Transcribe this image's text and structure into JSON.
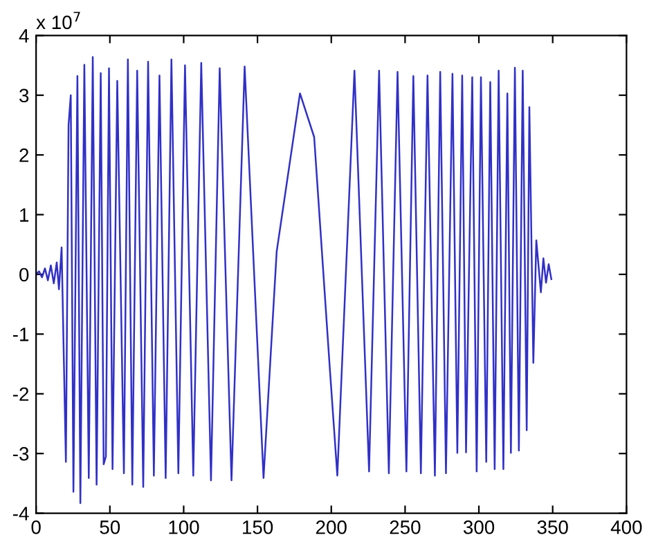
{
  "chart_data": {
    "type": "line",
    "annotations": [
      "x 10$^{7}$"
    ],
    "xlim": [
      0,
      400
    ],
    "xticks": [
      0,
      50,
      100,
      150,
      200,
      250,
      300,
      350,
      400
    ],
    "ylim": [
      -4,
      4
    ],
    "yticks": [
      -4,
      -3,
      -2,
      -1,
      0,
      1,
      2,
      3,
      4
    ],
    "grid": false,
    "marker": "none",
    "line_style": "solid",
    "series": [
      {
        "color": "#3030c8",
        "x": [
          0,
          2,
          4,
          6,
          8,
          10,
          12,
          14,
          15.5,
          17.3,
          20.2,
          22,
          23.5,
          25.3,
          28,
          30,
          32.7,
          35.7,
          38.4,
          41,
          43.8,
          45.8,
          47.3,
          49.4,
          51.8,
          55,
          59.5,
          62.2,
          65.2,
          68.5,
          72.6,
          75.9,
          79.8,
          83.6,
          87.8,
          91.7,
          96.4,
          100.9,
          106.5,
          111.9,
          118.5,
          124.4,
          132.4,
          141.3,
          154.1,
          163,
          178.8,
          188.4,
          198.8,
          204.1,
          215.7,
          225.6,
          232.4,
          239,
          244.9,
          250.9,
          255.6,
          260.7,
          265.2,
          270.2,
          273.8,
          277.7,
          282.1,
          285.4,
          288.7,
          291.3,
          295.5,
          298.5,
          301.4,
          305,
          307.7,
          310.7,
          313.4,
          316.6,
          319.3,
          321.7,
          324.4,
          327.1,
          329.7,
          332.4,
          334.2,
          336.9,
          338.9,
          342,
          343.7,
          345.5,
          347.3,
          349.1
        ],
        "values": [
          0,
          0.05,
          -0.05,
          0.1,
          -0.1,
          0.15,
          -0.15,
          0.2,
          -0.25,
          0.45,
          -3.14,
          2.5,
          3.0,
          -3.64,
          3.32,
          -3.83,
          3.51,
          -3.41,
          3.64,
          -3.52,
          3.37,
          -3.18,
          -3.05,
          3.45,
          -3.26,
          3.24,
          -3.33,
          3.6,
          -3.52,
          3.41,
          -3.56,
          3.56,
          -3.37,
          3.33,
          -3.41,
          3.6,
          -3.33,
          3.5,
          -3.37,
          3.54,
          -3.45,
          3.45,
          -3.45,
          3.48,
          -3.41,
          0.38,
          3.03,
          2.3,
          -1.5,
          -3.37,
          3.41,
          -3.3,
          3.41,
          -3.33,
          3.39,
          -3.3,
          3.32,
          -3.33,
          3.33,
          -3.37,
          3.39,
          -3.33,
          3.36,
          -2.99,
          3.33,
          -2.98,
          3.3,
          -3.3,
          3.3,
          -3.14,
          3.22,
          -3.26,
          3.41,
          -3.26,
          3.03,
          -2.99,
          3.46,
          -2.95,
          3.41,
          -2.61,
          2.8,
          -1.48,
          0.57,
          -0.3,
          0.27,
          -0.14,
          0.17,
          -0.08
        ]
      }
    ]
  }
}
